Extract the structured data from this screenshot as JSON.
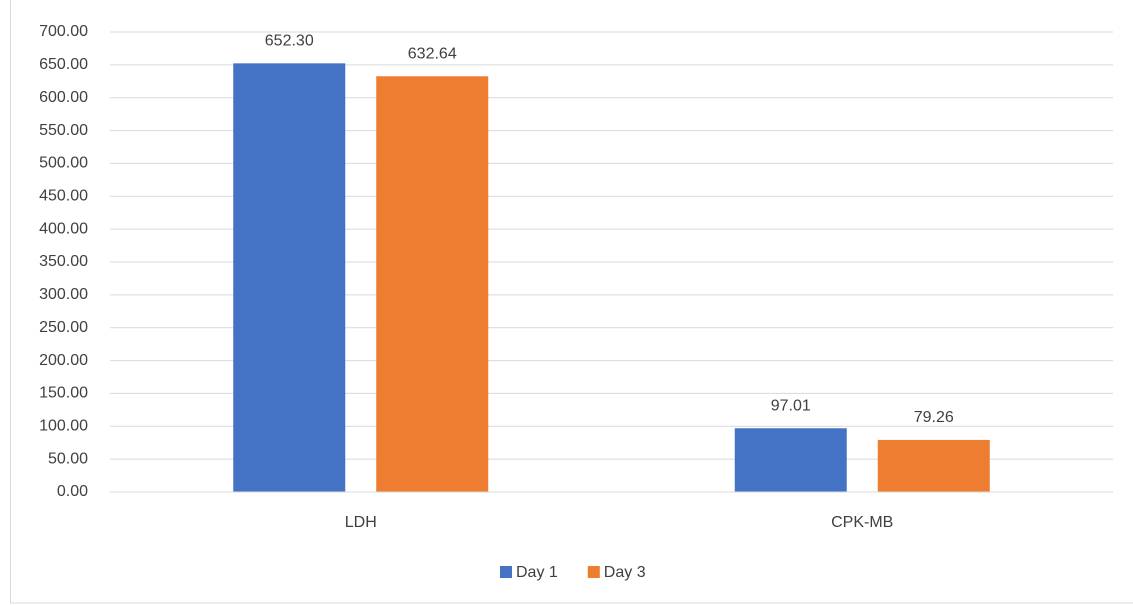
{
  "chart_data": {
    "type": "bar",
    "categories": [
      "LDH",
      "CPK-MB"
    ],
    "series": [
      {
        "name": "Day 1",
        "color": "#4472c4",
        "values": [
          652.3,
          97.01
        ],
        "value_labels": [
          "652.30",
          "97.01"
        ]
      },
      {
        "name": "Day 3",
        "color": "#ed7d31",
        "values": [
          632.64,
          79.26
        ],
        "value_labels": [
          "632.64",
          "79.26"
        ]
      }
    ],
    "ylim": [
      0,
      700
    ],
    "yticks": [
      {
        "value": 0,
        "label": "0.00"
      },
      {
        "value": 50,
        "label": "50.00"
      },
      {
        "value": 100,
        "label": "100.00"
      },
      {
        "value": 150,
        "label": "150.00"
      },
      {
        "value": 200,
        "label": "200.00"
      },
      {
        "value": 250,
        "label": "250.00"
      },
      {
        "value": 300,
        "label": "300.00"
      },
      {
        "value": 350,
        "label": "350.00"
      },
      {
        "value": 400,
        "label": "400.00"
      },
      {
        "value": 450,
        "label": "450.00"
      },
      {
        "value": 500,
        "label": "500.00"
      },
      {
        "value": 550,
        "label": "550.00"
      },
      {
        "value": 600,
        "label": "600.00"
      },
      {
        "value": 650,
        "label": "650.00"
      },
      {
        "value": 700,
        "label": "700.00"
      }
    ],
    "grid": true,
    "legend": "bottom"
  }
}
